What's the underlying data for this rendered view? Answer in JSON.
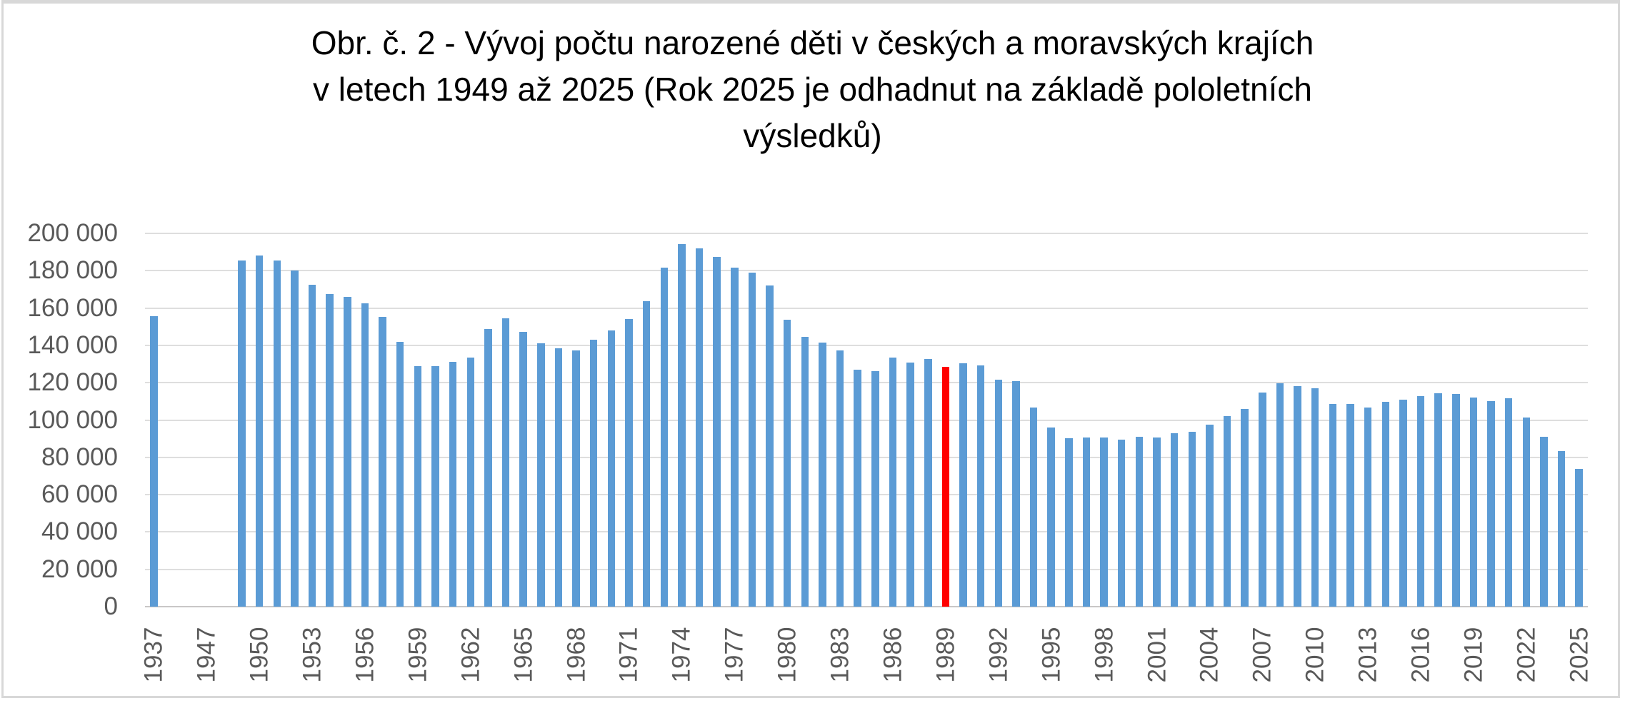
{
  "title": {
    "lines": [
      "Obr. č. 2 -  Vývoj počtu narozené děti v českých a moravských krajích",
      "v letech 1949 až 2025 (Rok 2025 je odhadnut na základě pololetních",
      "výsledků)"
    ]
  },
  "colors": {
    "bar": "#5B9BD5",
    "highlight": "#FF0000",
    "gridline": "#DEDEDE",
    "axis_line": "#C9C7C7",
    "tick_text": "#595959",
    "title_text": "#000000",
    "frame": "#D8D8D8"
  },
  "chart_data": {
    "type": "bar",
    "title": "Obr. č. 2 -  Vývoj počtu narozené děti v českých a moravských krajích v letech 1949 až 2025 (Rok 2025 je odhadnut na základě pololetních výsledků)",
    "xlabel": "",
    "ylabel": "",
    "ylim": [
      0,
      200000
    ],
    "grid": "horizontal",
    "legend": null,
    "x_tick_label_rotation": 90,
    "x_tick_every_n_slots": 3,
    "highlight_year": "1989",
    "y_ticks": [
      {
        "value": 0,
        "label": "0"
      },
      {
        "value": 20000,
        "label": "20 000"
      },
      {
        "value": 40000,
        "label": "40 000"
      },
      {
        "value": 60000,
        "label": "60 000"
      },
      {
        "value": 80000,
        "label": "80 000"
      },
      {
        "value": 100000,
        "label": "100 000"
      },
      {
        "value": 120000,
        "label": "120 000"
      },
      {
        "value": 140000,
        "label": "140 000"
      },
      {
        "value": 160000,
        "label": "160 000"
      },
      {
        "value": 180000,
        "label": "180 000"
      },
      {
        "value": 200000,
        "label": "200 000"
      }
    ],
    "bars": [
      {
        "year": "1937",
        "value": 155500,
        "tick": "1937"
      },
      {
        "year": "",
        "value": null,
        "tick": ""
      },
      {
        "year": "",
        "value": null,
        "tick": ""
      },
      {
        "year": "1947",
        "value": null,
        "tick": "1947"
      },
      {
        "year": "",
        "value": null,
        "tick": ""
      },
      {
        "year": "1949",
        "value": 185500,
        "tick": ""
      },
      {
        "year": "1950",
        "value": 188300,
        "tick": "1950"
      },
      {
        "year": "1951",
        "value": 185500,
        "tick": ""
      },
      {
        "year": "1952",
        "value": 180100,
        "tick": ""
      },
      {
        "year": "1953",
        "value": 172500,
        "tick": "1953"
      },
      {
        "year": "1954",
        "value": 167500,
        "tick": ""
      },
      {
        "year": "1955",
        "value": 165900,
        "tick": ""
      },
      {
        "year": "1956",
        "value": 162500,
        "tick": "1956"
      },
      {
        "year": "1957",
        "value": 155400,
        "tick": ""
      },
      {
        "year": "1958",
        "value": 141800,
        "tick": ""
      },
      {
        "year": "1959",
        "value": 129000,
        "tick": "1959"
      },
      {
        "year": "1960",
        "value": 128900,
        "tick": ""
      },
      {
        "year": "1961",
        "value": 131000,
        "tick": ""
      },
      {
        "year": "1962",
        "value": 133600,
        "tick": "1962"
      },
      {
        "year": "1963",
        "value": 148800,
        "tick": ""
      },
      {
        "year": "1964",
        "value": 154400,
        "tick": ""
      },
      {
        "year": "1965",
        "value": 147400,
        "tick": "1965"
      },
      {
        "year": "1966",
        "value": 141200,
        "tick": ""
      },
      {
        "year": "1967",
        "value": 138400,
        "tick": ""
      },
      {
        "year": "1968",
        "value": 137400,
        "tick": "1968"
      },
      {
        "year": "1969",
        "value": 143200,
        "tick": ""
      },
      {
        "year": "1970",
        "value": 147900,
        "tick": ""
      },
      {
        "year": "1971",
        "value": 154200,
        "tick": "1971"
      },
      {
        "year": "1972",
        "value": 163700,
        "tick": ""
      },
      {
        "year": "1973",
        "value": 181800,
        "tick": ""
      },
      {
        "year": "1974",
        "value": 194200,
        "tick": "1974"
      },
      {
        "year": "1975",
        "value": 191800,
        "tick": ""
      },
      {
        "year": "1976",
        "value": 187400,
        "tick": ""
      },
      {
        "year": "1977",
        "value": 181800,
        "tick": "1977"
      },
      {
        "year": "1978",
        "value": 178900,
        "tick": ""
      },
      {
        "year": "1979",
        "value": 172100,
        "tick": ""
      },
      {
        "year": "1980",
        "value": 153800,
        "tick": "1980"
      },
      {
        "year": "1981",
        "value": 144400,
        "tick": ""
      },
      {
        "year": "1982",
        "value": 141700,
        "tick": ""
      },
      {
        "year": "1983",
        "value": 137400,
        "tick": "1983"
      },
      {
        "year": "1984",
        "value": 126900,
        "tick": ""
      },
      {
        "year": "1985",
        "value": 126100,
        "tick": ""
      },
      {
        "year": "1986",
        "value": 133400,
        "tick": "1986"
      },
      {
        "year": "1987",
        "value": 130900,
        "tick": ""
      },
      {
        "year": "1988",
        "value": 132700,
        "tick": ""
      },
      {
        "year": "1989",
        "value": 128400,
        "tick": "1989"
      },
      {
        "year": "1990",
        "value": 130600,
        "tick": ""
      },
      {
        "year": "1991",
        "value": 129400,
        "tick": ""
      },
      {
        "year": "1992",
        "value": 121700,
        "tick": "1992"
      },
      {
        "year": "1993",
        "value": 121000,
        "tick": ""
      },
      {
        "year": "1994",
        "value": 106600,
        "tick": ""
      },
      {
        "year": "1995",
        "value": 96100,
        "tick": "1995"
      },
      {
        "year": "1996",
        "value": 90400,
        "tick": ""
      },
      {
        "year": "1997",
        "value": 90700,
        "tick": ""
      },
      {
        "year": "1998",
        "value": 90500,
        "tick": "1998"
      },
      {
        "year": "1999",
        "value": 89500,
        "tick": ""
      },
      {
        "year": "2000",
        "value": 90900,
        "tick": ""
      },
      {
        "year": "2001",
        "value": 90700,
        "tick": "2001"
      },
      {
        "year": "2002",
        "value": 92800,
        "tick": ""
      },
      {
        "year": "2003",
        "value": 93700,
        "tick": ""
      },
      {
        "year": "2004",
        "value": 97700,
        "tick": "2004"
      },
      {
        "year": "2005",
        "value": 102200,
        "tick": ""
      },
      {
        "year": "2006",
        "value": 105800,
        "tick": ""
      },
      {
        "year": "2007",
        "value": 114600,
        "tick": "2007"
      },
      {
        "year": "2008",
        "value": 119600,
        "tick": ""
      },
      {
        "year": "2009",
        "value": 118300,
        "tick": ""
      },
      {
        "year": "2010",
        "value": 117200,
        "tick": "2010"
      },
      {
        "year": "2011",
        "value": 108700,
        "tick": ""
      },
      {
        "year": "2012",
        "value": 108600,
        "tick": ""
      },
      {
        "year": "2013",
        "value": 106800,
        "tick": "2013"
      },
      {
        "year": "2014",
        "value": 109900,
        "tick": ""
      },
      {
        "year": "2015",
        "value": 110800,
        "tick": ""
      },
      {
        "year": "2016",
        "value": 112700,
        "tick": "2016"
      },
      {
        "year": "2017",
        "value": 114400,
        "tick": ""
      },
      {
        "year": "2018",
        "value": 114000,
        "tick": ""
      },
      {
        "year": "2019",
        "value": 112200,
        "tick": "2019"
      },
      {
        "year": "2020",
        "value": 110200,
        "tick": ""
      },
      {
        "year": "2021",
        "value": 111800,
        "tick": ""
      },
      {
        "year": "2022",
        "value": 101300,
        "tick": "2022"
      },
      {
        "year": "2023",
        "value": 91100,
        "tick": ""
      },
      {
        "year": "2024",
        "value": 83500,
        "tick": ""
      },
      {
        "year": "2025",
        "value": 74000,
        "tick": "2025"
      }
    ]
  }
}
